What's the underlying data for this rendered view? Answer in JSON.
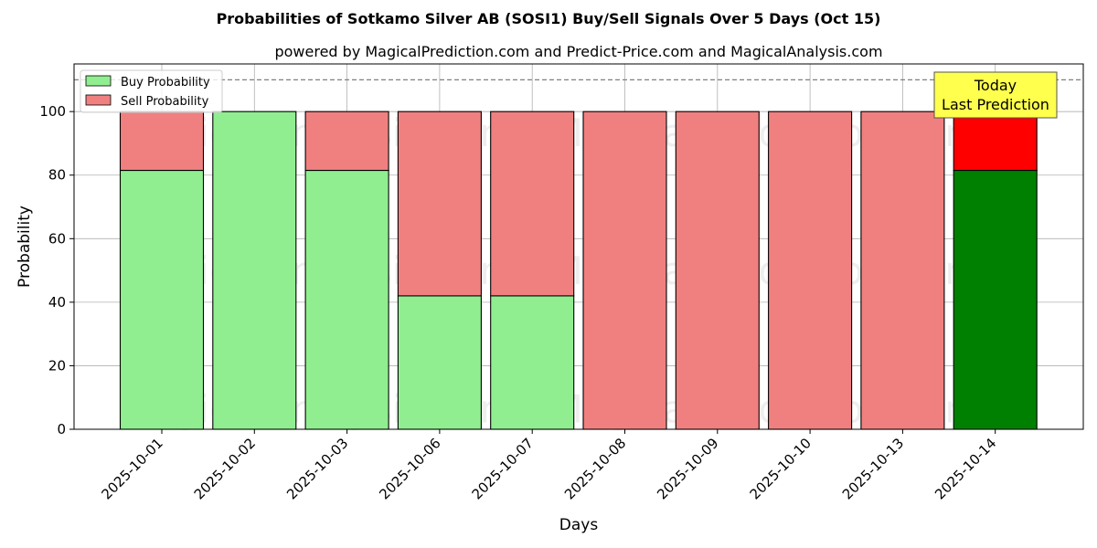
{
  "chart_data": {
    "type": "bar",
    "stacked": true,
    "title": "Probabilities of Sotkamo Silver AB (SOSI1) Buy/Sell Signals Over 5 Days (Oct 15)",
    "subtitle": "powered by MagicalPrediction.com and Predict-Price.com and MagicalAnalysis.com",
    "xlabel": "Days",
    "ylabel": "Probability",
    "ylim": [
      0,
      115
    ],
    "yticks": [
      0,
      20,
      40,
      60,
      80,
      100
    ],
    "grid": true,
    "legend_position": "top-left",
    "reference_line": 110,
    "categories": [
      "2025-10-01",
      "2025-10-02",
      "2025-10-03",
      "2025-10-06",
      "2025-10-07",
      "2025-10-08",
      "2025-10-09",
      "2025-10-10",
      "2025-10-13",
      "2025-10-14"
    ],
    "series": [
      {
        "name": "Buy Probability",
        "values": [
          81.5,
          100,
          81.5,
          42,
          42,
          0,
          0,
          0,
          0,
          81.5
        ]
      },
      {
        "name": "Sell Probability",
        "values": [
          18.5,
          0,
          18.5,
          58,
          58,
          100,
          100,
          100,
          100,
          18.5
        ]
      }
    ],
    "colors": {
      "buy": "#90ee90",
      "sell": "#f08080",
      "buy_highlight": "#008000",
      "sell_highlight": "#ff0000",
      "annotation_bg": "#ffff4d"
    },
    "annotation": {
      "lines": [
        "Today",
        "Last Prediction"
      ]
    },
    "watermarks": [
      "MagicalAnalysis.com",
      "MagicalPrediction.com"
    ]
  }
}
